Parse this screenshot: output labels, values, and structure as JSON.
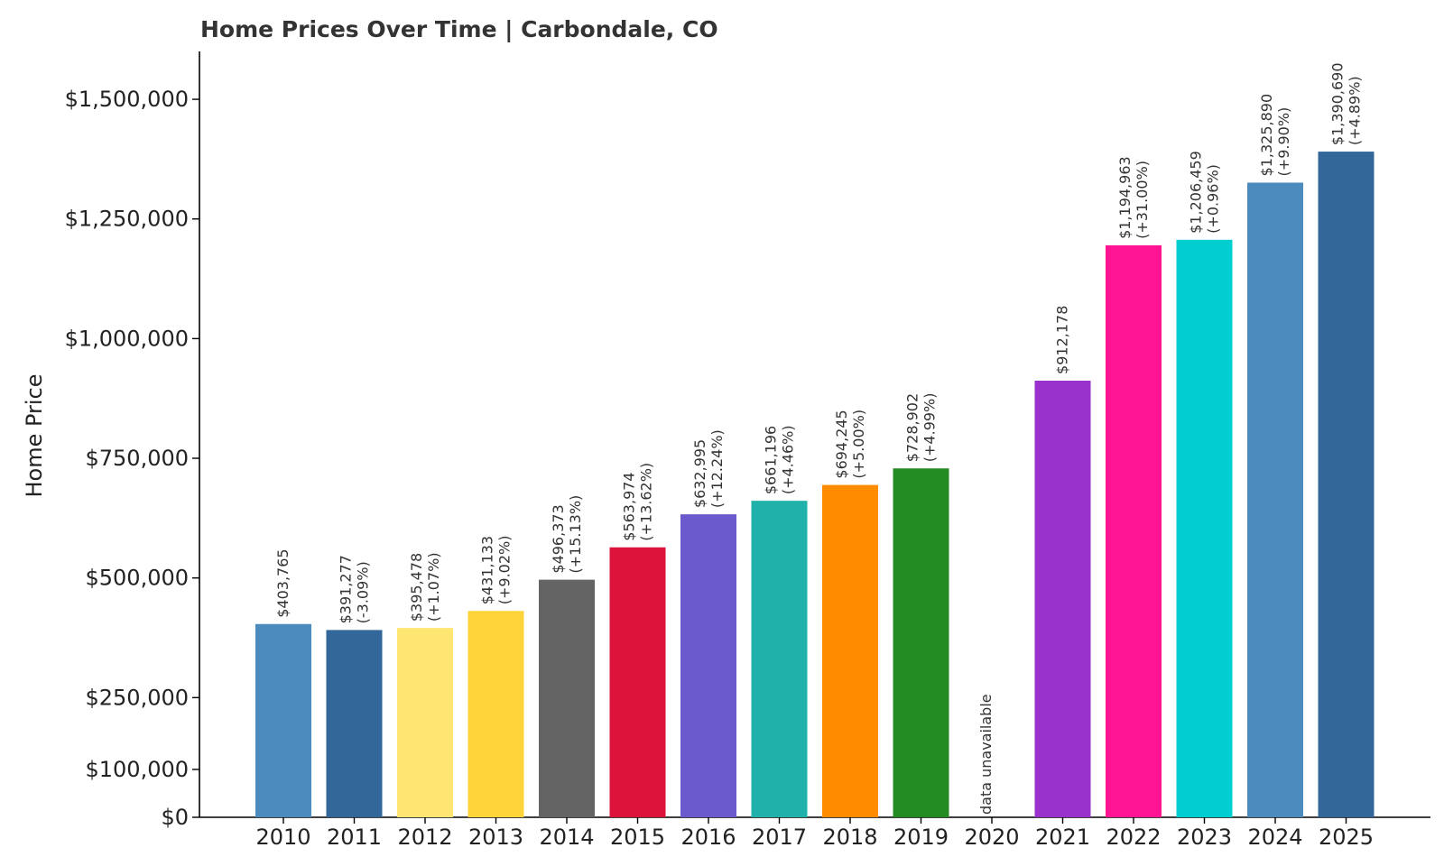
{
  "chart_data": {
    "type": "bar",
    "title": "Home Prices Over Time | Carbondale, CO",
    "xlabel": "",
    "ylabel": "Home Price",
    "ylim": [
      0,
      1600000
    ],
    "yticks": [
      0,
      100000,
      250000,
      500000,
      750000,
      1000000,
      1250000,
      1500000
    ],
    "ytick_labels": [
      "$0",
      "$100,000",
      "$250,000",
      "$500,000",
      "$750,000",
      "$1,000,000",
      "$1,250,000",
      "$1,500,000"
    ],
    "grid": false,
    "categories": [
      "2010",
      "2011",
      "2012",
      "2013",
      "2014",
      "2015",
      "2016",
      "2017",
      "2018",
      "2019",
      "2020",
      "2021",
      "2022",
      "2023",
      "2024",
      "2025"
    ],
    "values": [
      403765,
      391277,
      395478,
      431133,
      496373,
      563974,
      632995,
      661196,
      694245,
      728902,
      null,
      912178,
      1194963,
      1206459,
      1325890,
      1390690
    ],
    "value_labels": [
      "$403,765",
      "$391,277",
      "$395,478",
      "$431,133",
      "$496,373",
      "$563,974",
      "$632,995",
      "$661,196",
      "$694,245",
      "$728,902",
      "",
      "$912,178",
      "$1,194,963",
      "$1,206,459",
      "$1,325,890",
      "$1,390,690"
    ],
    "change_labels": [
      "",
      "(-3.09%)",
      "(+1.07%)",
      "(+9.02%)",
      "(+15.13%)",
      "(+13.62%)",
      "(+12.24%)",
      "(+4.46%)",
      "(+5.00%)",
      "(+4.99%)",
      "",
      "",
      "(+31.00%)",
      "(+0.96%)",
      "(+9.90%)",
      "(+4.89%)"
    ],
    "missing_label": "data unavailable",
    "colors": [
      "#4C8BBE",
      "#336699",
      "#FFE571",
      "#FFD43B",
      "#646464",
      "#DC143C",
      "#6A5ACD",
      "#20B2AA",
      "#FF8C00",
      "#228B22",
      "#FFFFFF",
      "#9932CC",
      "#FF1493",
      "#00CED1",
      "#4C8BBE",
      "#336699"
    ]
  }
}
